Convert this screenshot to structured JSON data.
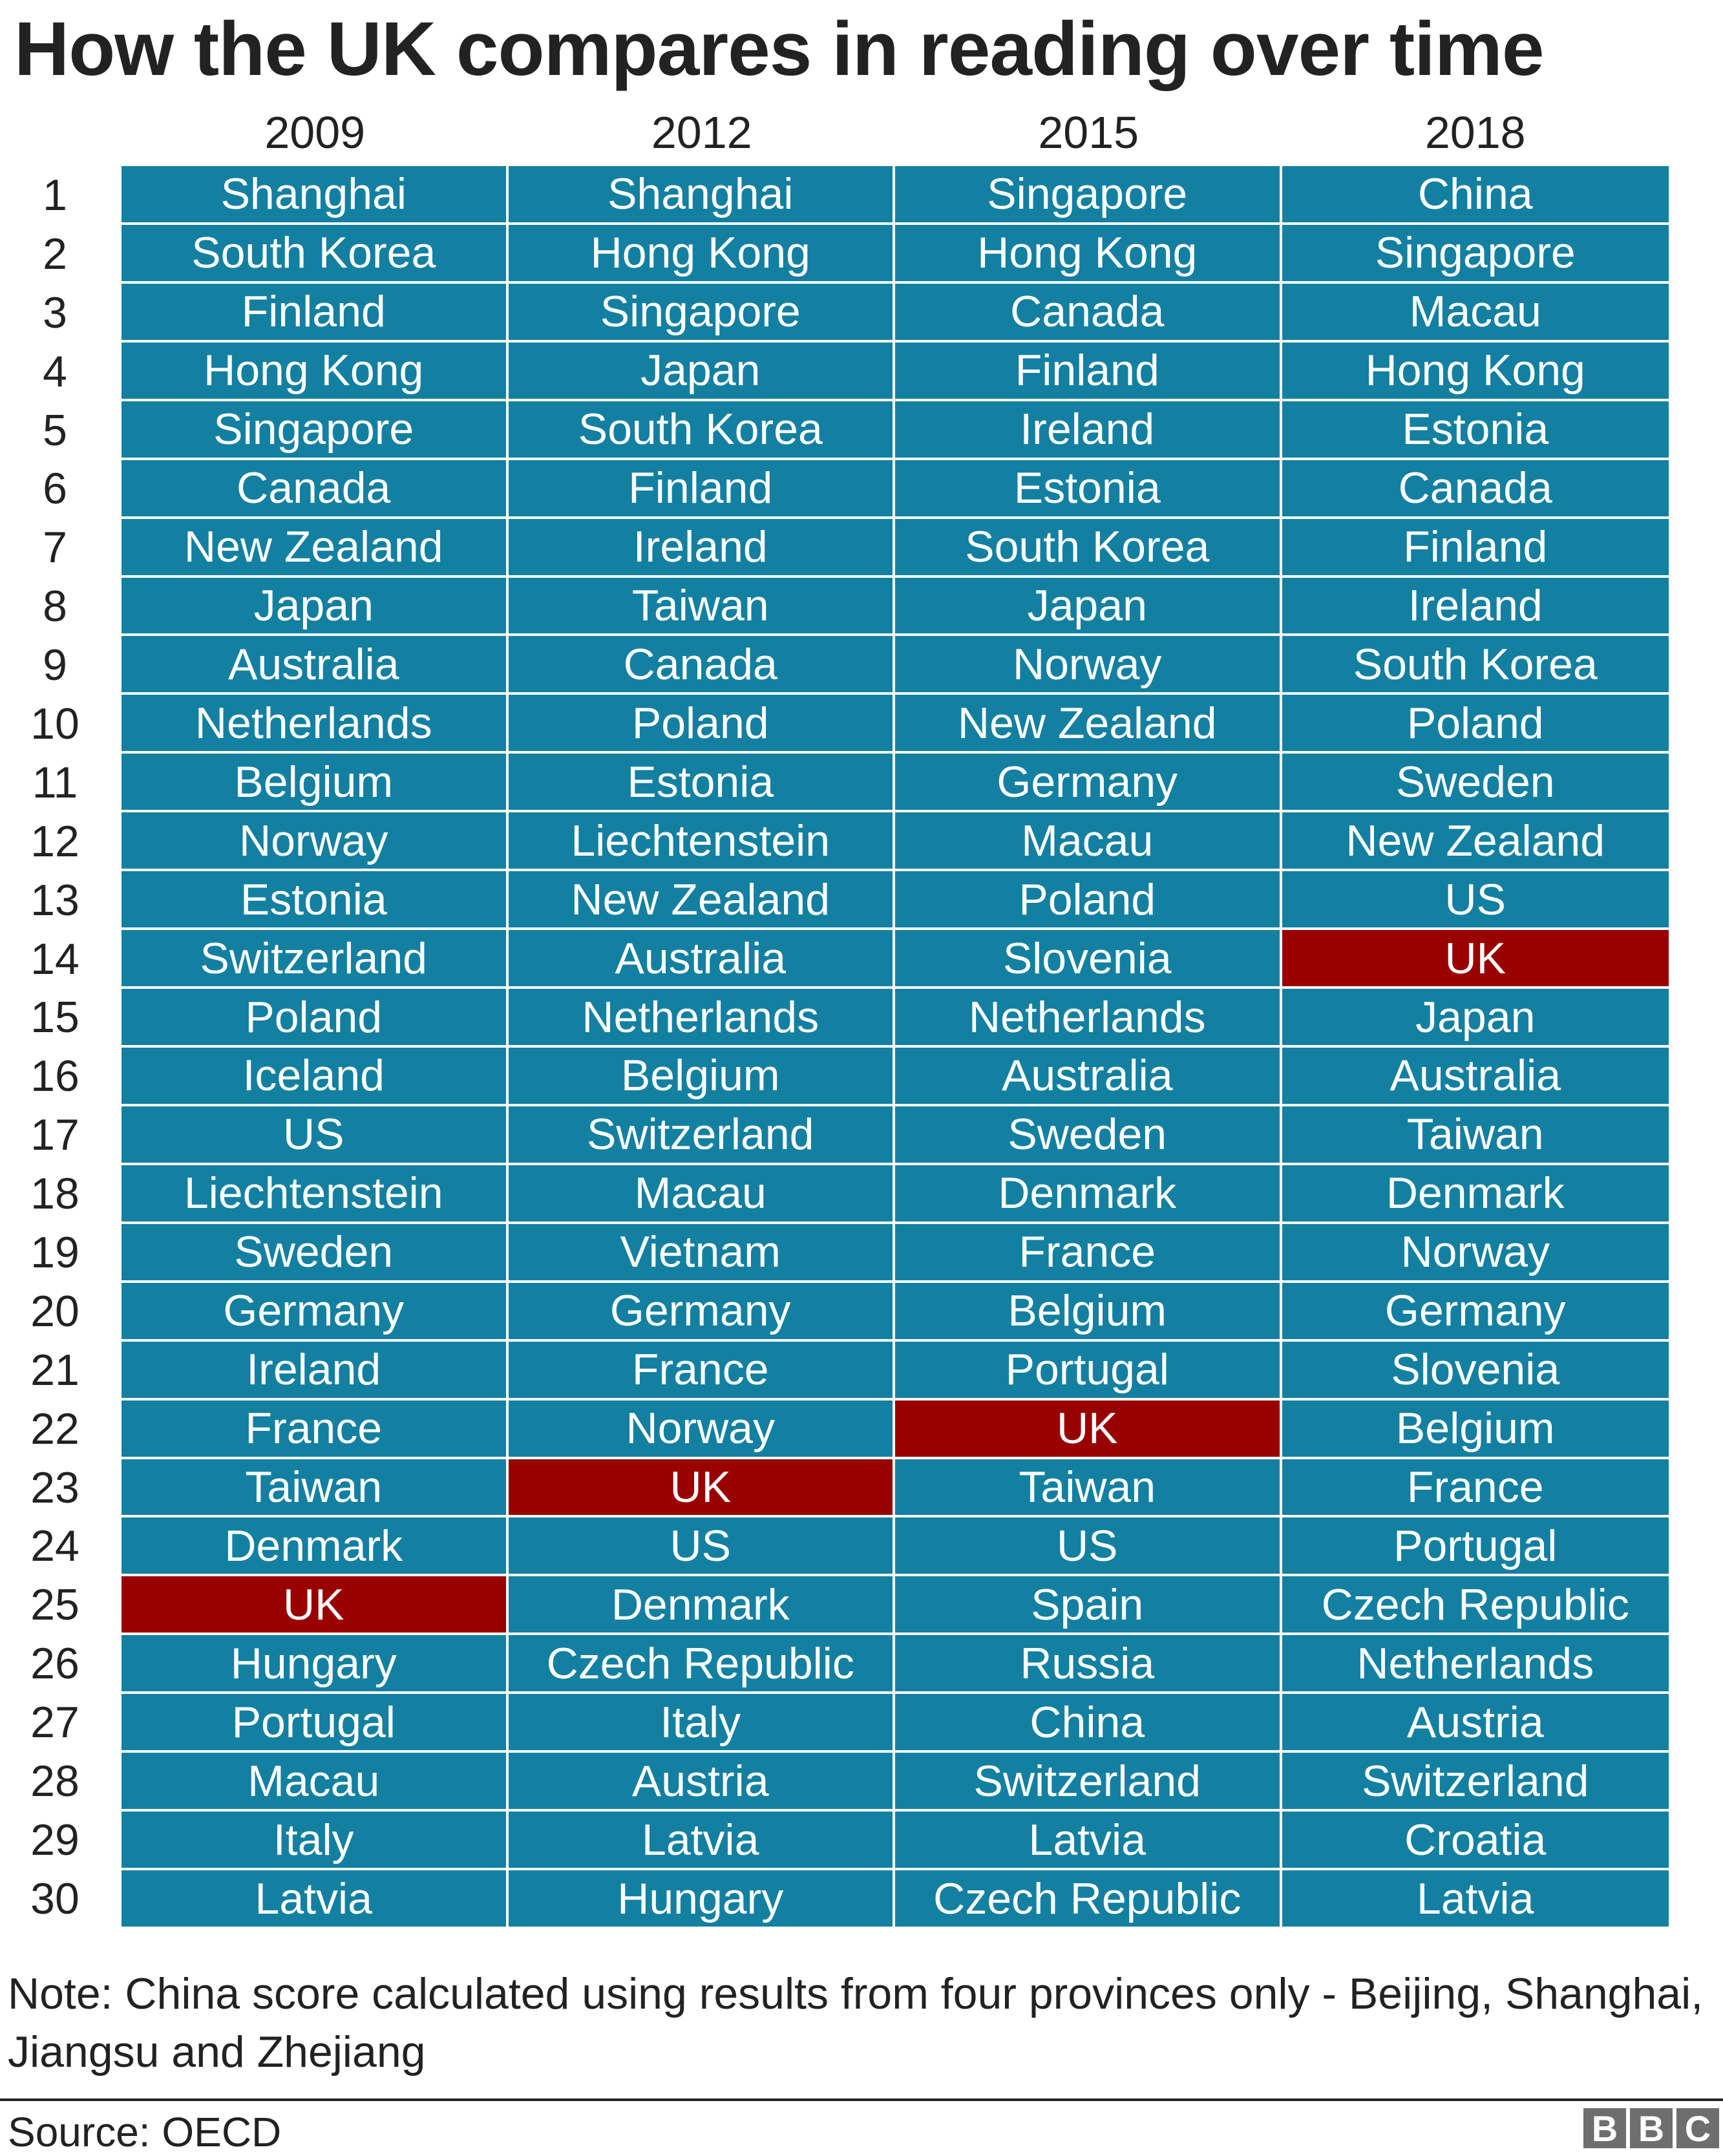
{
  "chart_data": {
    "type": "table",
    "title": "How the UK compares in reading over time",
    "columns": [
      "2009",
      "2012",
      "2015",
      "2018"
    ],
    "ranks": [
      "1",
      "2",
      "3",
      "4",
      "5",
      "6",
      "7",
      "8",
      "9",
      "10",
      "11",
      "12",
      "13",
      "14",
      "15",
      "16",
      "17",
      "18",
      "19",
      "20",
      "21",
      "22",
      "23",
      "24",
      "25",
      "26",
      "27",
      "28",
      "29",
      "30"
    ],
    "rankings": {
      "2009": [
        "Shanghai",
        "South Korea",
        "Finland",
        "Hong Kong",
        "Singapore",
        "Canada",
        "New Zealand",
        "Japan",
        "Australia",
        "Netherlands",
        "Belgium",
        "Norway",
        "Estonia",
        "Switzerland",
        "Poland",
        "Iceland",
        "US",
        "Liechtenstein",
        "Sweden",
        "Germany",
        "Ireland",
        "France",
        "Taiwan",
        "Denmark",
        "UK",
        "Hungary",
        "Portugal",
        "Macau",
        "Italy",
        "Latvia"
      ],
      "2012": [
        "Shanghai",
        "Hong Kong",
        "Singapore",
        "Japan",
        "South Korea",
        "Finland",
        "Ireland",
        "Taiwan",
        "Canada",
        "Poland",
        "Estonia",
        "Liechtenstein",
        "New Zealand",
        "Australia",
        "Netherlands",
        "Belgium",
        "Switzerland",
        "Macau",
        "Vietnam",
        "Germany",
        "France",
        "Norway",
        "UK",
        "US",
        "Denmark",
        "Czech Republic",
        "Italy",
        "Austria",
        "Latvia",
        "Hungary"
      ],
      "2015": [
        "Singapore",
        "Hong Kong",
        "Canada",
        "Finland",
        "Ireland",
        "Estonia",
        "South Korea",
        "Japan",
        "Norway",
        "New Zealand",
        "Germany",
        "Macau",
        "Poland",
        "Slovenia",
        "Netherlands",
        "Australia",
        "Sweden",
        "Denmark",
        "France",
        "Belgium",
        "Portugal",
        "UK",
        "Taiwan",
        "US",
        "Spain",
        "Russia",
        "China",
        "Switzerland",
        "Latvia",
        "Czech Republic"
      ],
      "2018": [
        "China",
        "Singapore",
        "Macau",
        "Hong Kong",
        "Estonia",
        "Canada",
        "Finland",
        "Ireland",
        "South Korea",
        "Poland",
        "Sweden",
        "New Zealand",
        "US",
        "UK",
        "Japan",
        "Australia",
        "Taiwan",
        "Denmark",
        "Norway",
        "Germany",
        "Slovenia",
        "Belgium",
        "France",
        "Portugal",
        "Czech Republic",
        "Netherlands",
        "Austria",
        "Switzerland",
        "Croatia",
        "Latvia"
      ]
    },
    "highlight": "UK",
    "colors": {
      "cell": "#1380A1",
      "highlight": "#990000",
      "text": "#ffffff"
    }
  },
  "note": "Note: China score calculated using results from four provinces only - Beijing, Shanghai, Jiangsu and Zhejiang",
  "source": "Source: OECD",
  "logo": "BBC"
}
